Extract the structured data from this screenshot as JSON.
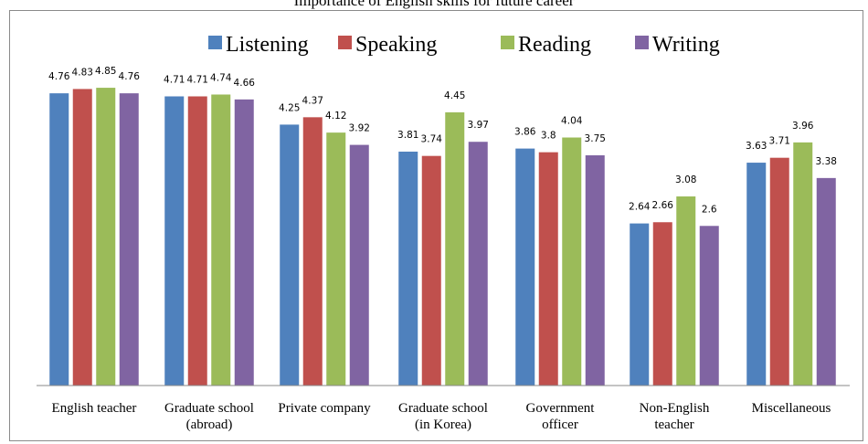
{
  "chart_data": {
    "type": "bar",
    "title": "Importance of English skills for future career",
    "categories": [
      [
        "English teacher"
      ],
      [
        "Graduate school",
        "(abroad)"
      ],
      [
        "Private company"
      ],
      [
        "Graduate school",
        "(in Korea)"
      ],
      [
        "Government",
        "officer"
      ],
      [
        "Non-English",
        "teacher"
      ],
      [
        "Miscellaneous"
      ]
    ],
    "series": [
      {
        "name": "Listening",
        "color": "#4f81bd",
        "values": [
          4.76,
          4.71,
          4.25,
          3.81,
          3.86,
          2.64,
          3.63
        ]
      },
      {
        "name": "Speaking",
        "color": "#c0504d",
        "values": [
          4.83,
          4.71,
          4.37,
          3.74,
          3.8,
          2.66,
          3.71
        ]
      },
      {
        "name": "Reading",
        "color": "#9bbb59",
        "values": [
          4.85,
          4.74,
          4.12,
          4.45,
          4.04,
          3.08,
          3.96
        ]
      },
      {
        "name": "Writing",
        "color": "#8064a2",
        "values": [
          4.76,
          4.66,
          3.92,
          3.97,
          3.75,
          2.6,
          3.38
        ]
      }
    ],
    "ylim": [
      0,
      5.0
    ],
    "grid": false,
    "legend_position": "top"
  }
}
